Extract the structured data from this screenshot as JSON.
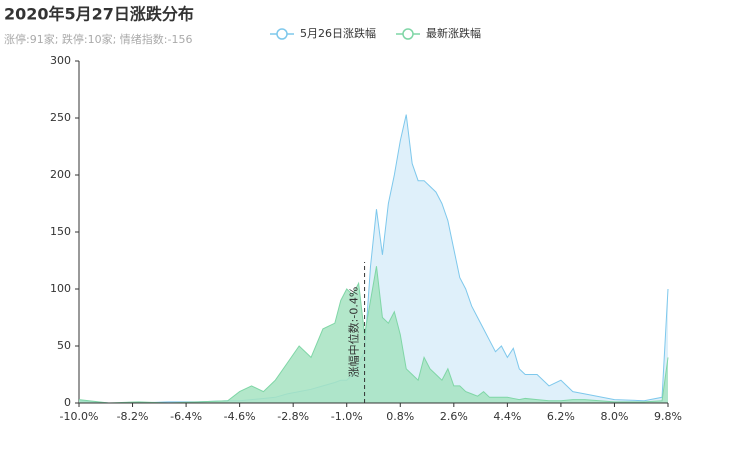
{
  "chart_data": {
    "type": "area",
    "title": "2020年5月27日涨跌分布",
    "subtitle": "涨停:91家; 跌停:10家; 情绪指数:-156",
    "x": [
      -10,
      -9,
      -8,
      -7,
      -6,
      -5,
      -4.6,
      -4.2,
      -3.8,
      -3.4,
      -3.0,
      -2.6,
      -2.2,
      -1.8,
      -1.4,
      -1.2,
      -1.0,
      -0.8,
      -0.6,
      -0.4,
      -0.2,
      0,
      0.2,
      0.4,
      0.6,
      0.8,
      1.0,
      1.2,
      1.4,
      1.6,
      1.8,
      2.0,
      2.2,
      2.4,
      2.6,
      2.8,
      3.0,
      3.2,
      3.4,
      3.6,
      3.8,
      4.0,
      4.2,
      4.4,
      4.6,
      4.8,
      5.0,
      5.4,
      5.8,
      6.2,
      6.6,
      7.0,
      8.0,
      9.0,
      9.6,
      9.8
    ],
    "series": [
      {
        "name": "5月26日涨跌幅",
        "color": "#7ec8ec",
        "fill": "#dff0fa",
        "values": [
          2,
          0,
          0,
          1,
          1,
          2,
          2,
          3,
          4,
          5,
          8,
          10,
          12,
          15,
          18,
          20,
          20,
          25,
          35,
          45,
          120,
          170,
          130,
          175,
          200,
          230,
          253,
          210,
          195,
          195,
          190,
          185,
          175,
          160,
          135,
          110,
          100,
          85,
          75,
          65,
          55,
          45,
          50,
          40,
          48,
          30,
          25,
          25,
          15,
          20,
          10,
          8,
          3,
          2,
          5,
          100
        ]
      },
      {
        "name": "最新涨跌幅",
        "color": "#7fd6a6",
        "fill": "#a6e3c1",
        "values": [
          3,
          0,
          1,
          0,
          1,
          2,
          10,
          15,
          10,
          20,
          35,
          50,
          40,
          65,
          70,
          90,
          100,
          95,
          105,
          60,
          90,
          120,
          75,
          70,
          80,
          60,
          30,
          25,
          20,
          40,
          30,
          25,
          20,
          30,
          15,
          15,
          10,
          8,
          6,
          10,
          5,
          5,
          5,
          5,
          4,
          3,
          4,
          3,
          2,
          2,
          3,
          3,
          1,
          1,
          2,
          40
        ]
      }
    ],
    "xlim": [
      -10,
      9.8
    ],
    "xticks": [
      {
        "value": -10,
        "label": "-10.0%"
      },
      {
        "value": -8.2,
        "label": "-8.2%"
      },
      {
        "value": -6.4,
        "label": "-6.4%"
      },
      {
        "value": -4.6,
        "label": "-4.6%"
      },
      {
        "value": -2.8,
        "label": "-2.8%"
      },
      {
        "value": -1.0,
        "label": "-1.0%"
      },
      {
        "value": 0.8,
        "label": "0.8%"
      },
      {
        "value": 2.6,
        "label": "2.6%"
      },
      {
        "value": 4.4,
        "label": "4.4%"
      },
      {
        "value": 6.2,
        "label": "6.2%"
      },
      {
        "value": 8.0,
        "label": "8.0%"
      },
      {
        "value": 9.8,
        "label": "9.8%"
      }
    ],
    "ylim": [
      0,
      300
    ],
    "yticks": [
      0,
      50,
      100,
      150,
      200,
      250,
      300
    ],
    "median_line": {
      "x": -0.4,
      "label": "涨幅中位数:-0.4%"
    }
  }
}
